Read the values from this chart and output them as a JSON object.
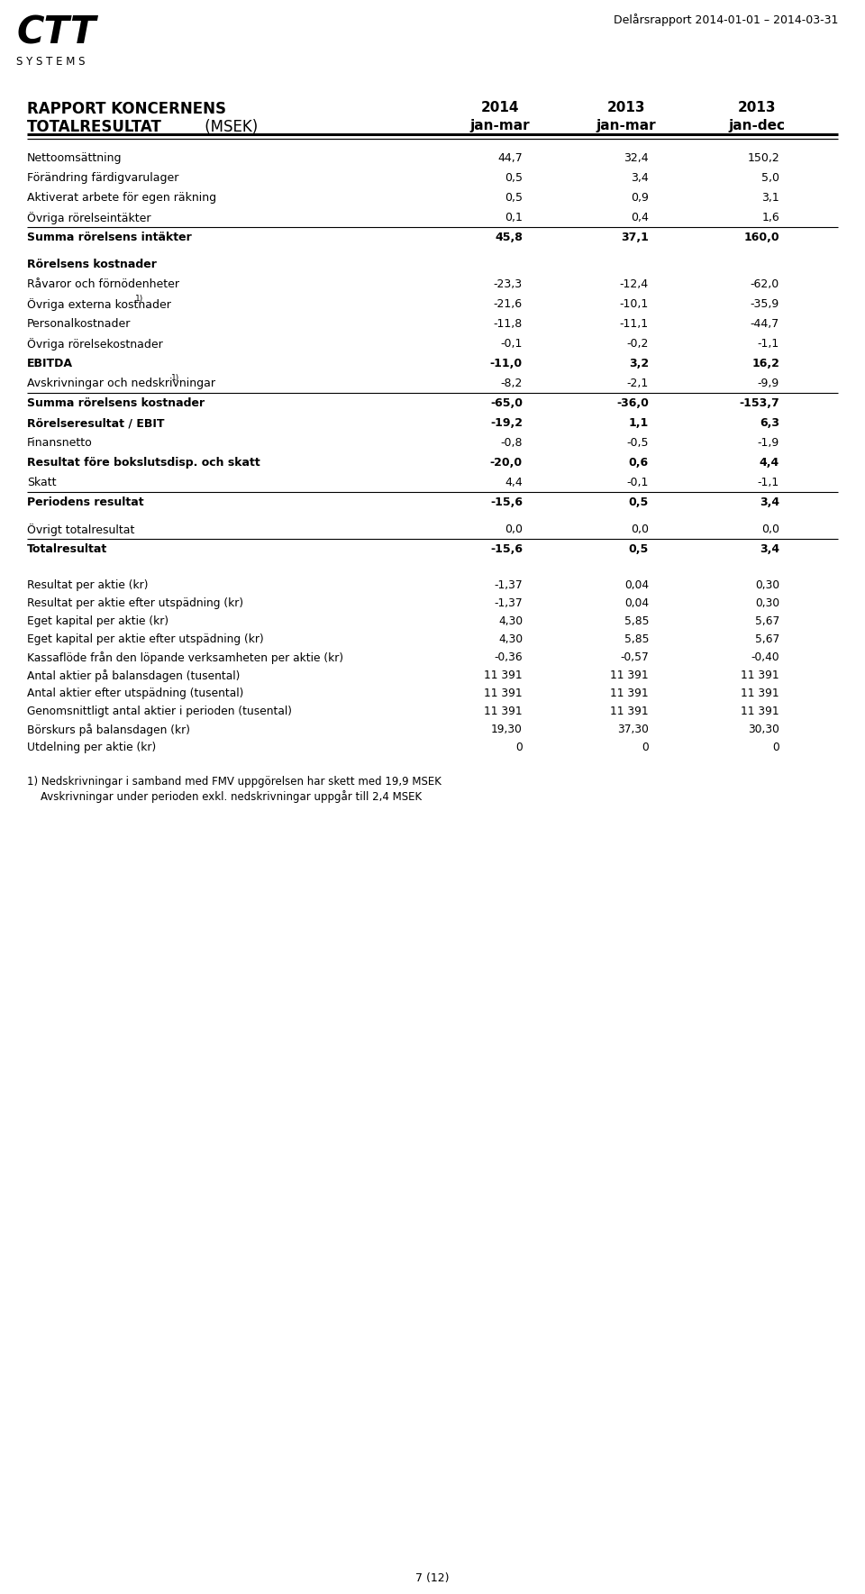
{
  "report_header_line1": "RAPPORT KONCERNENS",
  "report_header_line2": "TOTALRESULTAT",
  "report_header_suffix": " (MSEK)",
  "header_right": "Delårsrapport 2014-01-01 – 2014-03-31",
  "col_years": [
    "2014",
    "2013",
    "2013"
  ],
  "col_periods": [
    "jan-mar",
    "jan-mar",
    "jan-dec"
  ],
  "rows": [
    {
      "label": "Nettoomsättning",
      "vals": [
        "44,7",
        "32,4",
        "150,2"
      ],
      "bold": false,
      "superscript": false,
      "line_above": false,
      "line_below": false,
      "spacer_after": false
    },
    {
      "label": "Förändring färdigvarulager",
      "vals": [
        "0,5",
        "3,4",
        "5,0"
      ],
      "bold": false,
      "superscript": false,
      "line_above": false,
      "line_below": false,
      "spacer_after": false
    },
    {
      "label": "Aktiverat arbete för egen räkning",
      "vals": [
        "0,5",
        "0,9",
        "3,1"
      ],
      "bold": false,
      "superscript": false,
      "line_above": false,
      "line_below": false,
      "spacer_after": false
    },
    {
      "label": "Övriga rörelseintäkter",
      "vals": [
        "0,1",
        "0,4",
        "1,6"
      ],
      "bold": false,
      "superscript": false,
      "line_above": false,
      "line_below": true,
      "spacer_after": false
    },
    {
      "label": "Summa rörelsens intäkter",
      "vals": [
        "45,8",
        "37,1",
        "160,0"
      ],
      "bold": true,
      "superscript": false,
      "line_above": false,
      "line_below": false,
      "spacer_after": true
    },
    {
      "label": "Rörelsens kostnader",
      "vals": [
        "",
        "",
        ""
      ],
      "bold": true,
      "superscript": false,
      "line_above": false,
      "line_below": false,
      "spacer_after": false
    },
    {
      "label": "Råvaror och förnödenheter",
      "vals": [
        "-23,3",
        "-12,4",
        "-62,0"
      ],
      "bold": false,
      "superscript": false,
      "line_above": false,
      "line_below": false,
      "spacer_after": false
    },
    {
      "label": "Övriga externa kostnader",
      "vals": [
        "-21,6",
        "-10,1",
        "-35,9"
      ],
      "bold": false,
      "superscript": true,
      "line_above": false,
      "line_below": false,
      "spacer_after": false
    },
    {
      "label": "Personalkostnader",
      "vals": [
        "-11,8",
        "-11,1",
        "-44,7"
      ],
      "bold": false,
      "superscript": false,
      "line_above": false,
      "line_below": false,
      "spacer_after": false
    },
    {
      "label": "Övriga rörelsekostnader",
      "vals": [
        "-0,1",
        "-0,2",
        "-1,1"
      ],
      "bold": false,
      "superscript": false,
      "line_above": false,
      "line_below": false,
      "spacer_after": false
    },
    {
      "label": "EBITDA",
      "vals": [
        "-11,0",
        "3,2",
        "16,2"
      ],
      "bold": true,
      "superscript": false,
      "line_above": false,
      "line_below": false,
      "spacer_after": false
    },
    {
      "label": "Avskrivningar och nedskrivningar",
      "vals": [
        "-8,2",
        "-2,1",
        "-9,9"
      ],
      "bold": false,
      "superscript": true,
      "line_above": false,
      "line_below": false,
      "spacer_after": false
    },
    {
      "label": "Summa rörelsens kostnader",
      "vals": [
        "-65,0",
        "-36,0",
        "-153,7"
      ],
      "bold": true,
      "superscript": false,
      "line_above": true,
      "line_below": false,
      "spacer_after": false
    },
    {
      "label": "Rörelseresultat / EBIT",
      "vals": [
        "-19,2",
        "1,1",
        "6,3"
      ],
      "bold": true,
      "superscript": false,
      "line_above": false,
      "line_below": false,
      "spacer_after": false
    },
    {
      "label": "Finansnetto",
      "vals": [
        "-0,8",
        "-0,5",
        "-1,9"
      ],
      "bold": false,
      "superscript": false,
      "line_above": false,
      "line_below": false,
      "spacer_after": false
    },
    {
      "label": "Resultat före bokslutsdisp. och skatt",
      "vals": [
        "-20,0",
        "0,6",
        "4,4"
      ],
      "bold": true,
      "superscript": false,
      "line_above": false,
      "line_below": false,
      "spacer_after": false
    },
    {
      "label": "Skatt",
      "vals": [
        "4,4",
        "-0,1",
        "-1,1"
      ],
      "bold": false,
      "superscript": false,
      "line_above": false,
      "line_below": true,
      "spacer_after": false
    },
    {
      "label": "Periodens resultat",
      "vals": [
        "-15,6",
        "0,5",
        "3,4"
      ],
      "bold": true,
      "superscript": false,
      "line_above": false,
      "line_below": false,
      "spacer_after": true
    },
    {
      "label": "Övrigt totalresultat",
      "vals": [
        "0,0",
        "0,0",
        "0,0"
      ],
      "bold": false,
      "superscript": false,
      "line_above": false,
      "line_below": true,
      "spacer_after": false
    },
    {
      "label": "Totalresultat",
      "vals": [
        "-15,6",
        "0,5",
        "3,4"
      ],
      "bold": true,
      "superscript": false,
      "line_above": false,
      "line_below": false,
      "spacer_after": true
    }
  ],
  "bottom_rows": [
    {
      "label": "Resultat per aktie (kr)",
      "vals": [
        "-1,37",
        "0,04",
        "0,30"
      ],
      "bold": false
    },
    {
      "label": "Resultat per aktie efter utspädning (kr)",
      "vals": [
        "-1,37",
        "0,04",
        "0,30"
      ],
      "bold": false
    },
    {
      "label": "Eget kapital per aktie (kr)",
      "vals": [
        "4,30",
        "5,85",
        "5,67"
      ],
      "bold": false
    },
    {
      "label": "Eget kapital per aktie efter utspädning (kr)",
      "vals": [
        "4,30",
        "5,85",
        "5,67"
      ],
      "bold": false
    },
    {
      "label": "Kassaflöde från den löpande verksamheten per aktie (kr)",
      "vals": [
        "-0,36",
        "-0,57",
        "-0,40"
      ],
      "bold": false
    },
    {
      "label": "Antal aktier på balansdagen (tusental)",
      "vals": [
        "11 391",
        "11 391",
        "11 391"
      ],
      "bold": false
    },
    {
      "label": "Antal aktier efter utspädning (tusental)",
      "vals": [
        "11 391",
        "11 391",
        "11 391"
      ],
      "bold": false
    },
    {
      "label": "Genomsnittligt antal aktier i perioden (tusental)",
      "vals": [
        "11 391",
        "11 391",
        "11 391"
      ],
      "bold": false
    },
    {
      "label": "Börskurs på balansdagen (kr)",
      "vals": [
        "19,30",
        "37,30",
        "30,30"
      ],
      "bold": false
    },
    {
      "label": "Utdelning per aktie (kr)",
      "vals": [
        "0",
        "0",
        "0"
      ],
      "bold": false
    }
  ],
  "footnote1": "1) Nedskrivningar i samband med FMV uppgörelsen har skett med 19,9 MSEK",
  "footnote2": "    Avskrivningar under perioden exkl. nedskrivningar uppgår till 2,4 MSEK",
  "page_footer": "7 (12)",
  "bg_color": "#ffffff",
  "text_color": "#000000",
  "line_color": "#000000"
}
